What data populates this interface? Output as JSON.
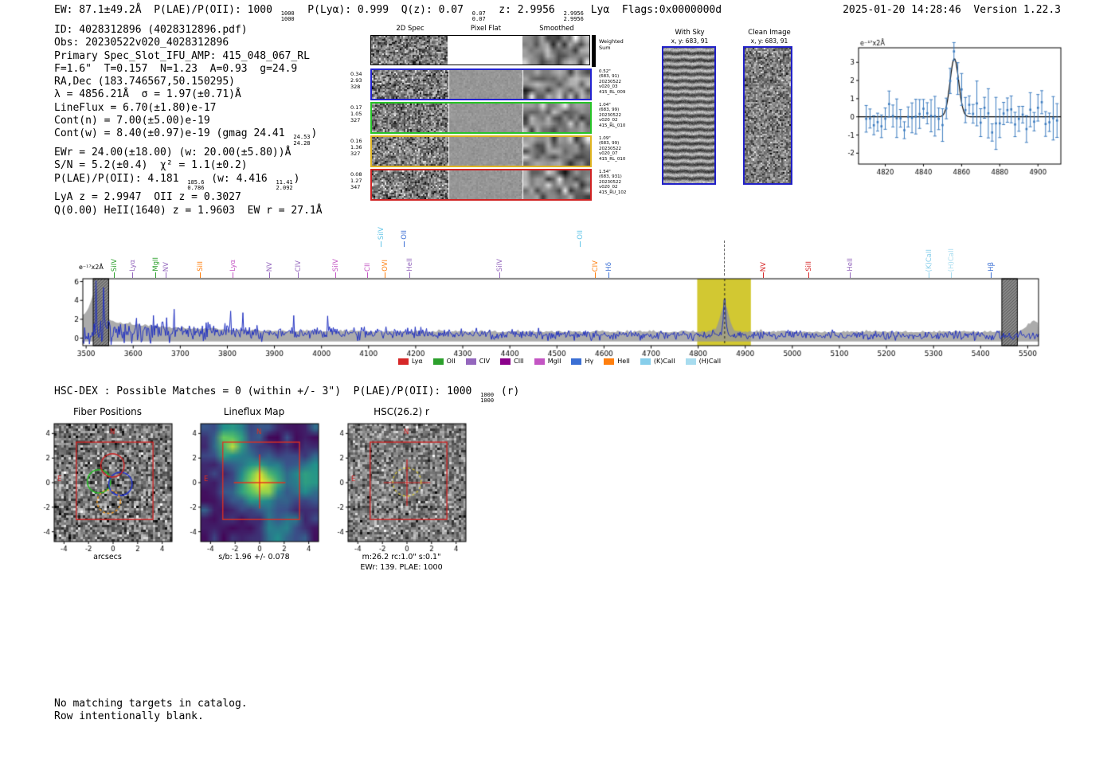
{
  "header": {
    "ew": "EW: 87.1±49.2Å  ",
    "plae_label": "P(LAE)/P(OII): 1000 ",
    "plae_hi": "1000",
    "plae_lo": "1000",
    "mid1": "  P(Lyα): 0.999  Q(z): 0.07 ",
    "qz_hi": "0.07",
    "qz_lo": "0.07",
    "mid2": "  z: 2.9956 ",
    "z_hi": "2.9956",
    "z_lo": "2.9956",
    "tail": " Lyα  Flags:0x0000000d",
    "datetime": "2025-01-20 14:28:46  Version 1.22.3"
  },
  "info": {
    "lines": [
      "ID: 4028312896 (4028312896.pdf)",
      "Obs: 20230522v020_4028312896",
      "Primary Spec_Slot_IFU_AMP: 415_048_067_RL",
      "F=1.6\"  T=0.157  N=1.23  A=0.93  g=24.9",
      "RA,Dec (183.746567,50.150295)",
      "λ = 4856.21Å  σ = 1.97(±0.71)Å",
      "LineFlux = 6.70(±1.80)e-17",
      "Cont(n) = 7.00(±5.00)e-19",
      "EWr = 24.00(±18.00) (w: 20.00(±5.80))Å",
      "S/N = 5.2(±0.4)  χ² = 1.1(±0.2)",
      "LyA z = 2.9947  OII z = 0.3027",
      "Q(0.00) HeII(1640) z = 1.9603  EW r = 27.1Å"
    ],
    "contw": {
      "pre": "Cont(w) = 8.40(±0.97)e-19 (gmag 24.41 ",
      "hi": "24.53",
      "lo": "24.28",
      "post": ")"
    },
    "plae": {
      "pre": "P(LAE)/P(OII): 4.181 ",
      "hi": "185.6",
      "lo": "0.786",
      "mid": " (w: 4.416 ",
      "hi2": "11.41",
      "lo2": "2.092",
      "post": ")"
    }
  },
  "twod": {
    "col_headers": [
      "2D Spec",
      "Pixel Flat",
      "Smoothed"
    ],
    "weighted_label_1": "Weighted",
    "weighted_label_2": "Sum",
    "rows": [
      {
        "left": [
          "0.34",
          "2.93",
          "328"
        ],
        "color": "#2323d1",
        "right": [
          "0.52\"",
          "(683, 91)",
          "20230522",
          "v020_03",
          "415_RL_009"
        ]
      },
      {
        "left": [
          "0.17",
          "1.05",
          "327"
        ],
        "color": "#27c427",
        "right": [
          "1.04\"",
          "(683, 99)",
          "20230522",
          "v020_02",
          "415_RL_010"
        ]
      },
      {
        "left": [
          "0.16",
          "1.36",
          "327"
        ],
        "color": "#e0b420",
        "right": [
          "1.09\"",
          "(683, 99)",
          "20230522",
          "v020_07",
          "415_RL_010"
        ]
      },
      {
        "left": [
          "0.08",
          "1.27",
          "347"
        ],
        "color": "#d12323",
        "right": [
          "1.54\"",
          "(683, 931)",
          "20230522",
          "v020_02",
          "415_RU_102"
        ]
      }
    ]
  },
  "withsky": {
    "title": "With Sky",
    "subtitle": "x, y: 683, 91"
  },
  "clean": {
    "title": "Clean Image",
    "subtitle": "x, y: 683, 91"
  },
  "hscdex": {
    "pre": "HSC-DEX : Possible Matches = 0 (within +/- 3\")  P(LAE)/P(OII): 1000 ",
    "hi": "1000",
    "lo": "1000",
    "post": " (r)"
  },
  "footer": {
    "line1": "No matching targets in catalog.",
    "line2": "Row intentionally blank."
  },
  "chart_data": [
    {
      "name": "line_fit",
      "type": "line",
      "unit_label": "e⁻¹⁷x2Å",
      "xlim": [
        4806,
        4912
      ],
      "ylim": [
        -2.6,
        3.8
      ],
      "x_ticks": [
        4820,
        4840,
        4860,
        4880,
        4900
      ],
      "y_ticks": [
        -2,
        -1,
        0,
        1,
        2,
        3
      ],
      "gaussian": {
        "center": 4856.21,
        "sigma": 1.97,
        "amplitude": 3.2
      },
      "point_color": "#3b7bbf",
      "fit_color": "#000000"
    },
    {
      "name": "full_spectrum",
      "type": "line",
      "unit_label": "e⁻¹⁷x2Å",
      "xlim": [
        3493,
        5523
      ],
      "ylim": [
        -0.8,
        6.3
      ],
      "x_ticks": [
        3500,
        3600,
        3700,
        3800,
        3900,
        4000,
        4100,
        4200,
        4300,
        4400,
        4500,
        4600,
        4700,
        4800,
        4900,
        5000,
        5100,
        5200,
        5300,
        5400,
        5500
      ],
      "y_ticks": [
        0,
        2,
        4,
        6
      ],
      "detection": {
        "center": 4856.21,
        "sigma": 2.4,
        "amplitude": 4.1
      },
      "highlight_band": [
        4798,
        4912
      ],
      "hatch_bands": [
        [
          3515,
          3548
        ],
        [
          5445,
          5478
        ]
      ],
      "line_color": "#2030c0",
      "error_fill": "#969696",
      "band_color": "#d2c832",
      "markers": [
        {
          "label": "SiIV",
          "wave": 3560,
          "color": "#2ca02c",
          "raise": 0
        },
        {
          "label": "Lyα",
          "wave": 3599,
          "color": "#9467bd",
          "raise": 0
        },
        {
          "label": "MgII",
          "wave": 3648,
          "color": "#2ca02c",
          "raise": 0
        },
        {
          "label": "NV",
          "wave": 3671,
          "color": "#9467bd",
          "raise": 0
        },
        {
          "label": "SiII",
          "wave": 3743,
          "color": "#ff7f0e",
          "raise": 0
        },
        {
          "label": "Lyα",
          "wave": 3813,
          "color": "#c355c3",
          "raise": 0
        },
        {
          "label": "NV",
          "wave": 3891,
          "color": "#9467bd",
          "raise": 0
        },
        {
          "label": "CIV",
          "wave": 3951,
          "color": "#9467bd",
          "raise": 0
        },
        {
          "label": "SiIV",
          "wave": 4031,
          "color": "#c355c3",
          "raise": 0
        },
        {
          "label": "CII",
          "wave": 4099,
          "color": "#c355c3",
          "raise": 0
        },
        {
          "label": "SiIV",
          "wave": 4128,
          "color": "#63c5e8",
          "raise": 1
        },
        {
          "label": "OVI",
          "wave": 4136,
          "color": "#ff7f0e",
          "raise": 0
        },
        {
          "label": "OII",
          "wave": 4176,
          "color": "#3b6fd4",
          "raise": 1
        },
        {
          "label": "HeII",
          "wave": 4188,
          "color": "#9467bd",
          "raise": 0
        },
        {
          "label": "SiIV",
          "wave": 4379,
          "color": "#9467bd",
          "raise": 0
        },
        {
          "label": "OII",
          "wave": 4551,
          "color": "#63c5e8",
          "raise": 1
        },
        {
          "label": "CIV",
          "wave": 4583,
          "color": "#ff7f0e",
          "raise": 0
        },
        {
          "label": "Hδ",
          "wave": 4611,
          "color": "#3b6fd4",
          "raise": 0
        },
        {
          "label": "NV",
          "wave": 4939,
          "color": "#d62728",
          "raise": 0
        },
        {
          "label": "SiII",
          "wave": 5036,
          "color": "#d62728",
          "raise": 0
        },
        {
          "label": "HeII",
          "wave": 5123,
          "color": "#9467bd",
          "raise": 0
        },
        {
          "label": "(K)CaII",
          "wave": 5292,
          "color": "#87ceeb",
          "raise": 0
        },
        {
          "label": "(H)CaII",
          "wave": 5339,
          "color": "#a8dcef",
          "raise": 0
        },
        {
          "label": "Hβ",
          "wave": 5423,
          "color": "#3b6fd4",
          "raise": 0
        }
      ],
      "legend": [
        {
          "label": "Lyα",
          "color": "#d62728"
        },
        {
          "label": "OII",
          "color": "#2ca02c"
        },
        {
          "label": "CIV",
          "color": "#9467bd"
        },
        {
          "label": "CIII",
          "color": "#8b008b"
        },
        {
          "label": "MgII",
          "color": "#c355c3"
        },
        {
          "label": "Hγ",
          "color": "#3b6fd4"
        },
        {
          "label": "HeII",
          "color": "#ff7f0e"
        },
        {
          "label": "(K)CaII",
          "color": "#87ceeb"
        },
        {
          "label": "(H)CaII",
          "color": "#a8dcef"
        }
      ]
    },
    {
      "name": "fiber_positions",
      "type": "scatter",
      "title": "Fiber Positions",
      "xlabel": "arcsecs",
      "ticks": [
        -4,
        -2,
        0,
        2,
        4
      ],
      "range": [
        -4.8,
        4.8
      ],
      "square": [
        -3.0,
        -3.0,
        3.25,
        3.3
      ],
      "fibers": [
        {
          "x": -1.15,
          "y": 0.1,
          "r": 0.95,
          "color": "#22bb22",
          "dash": false
        },
        {
          "x": 0.6,
          "y": -0.1,
          "r": 0.95,
          "color": "#2233cc",
          "dash": false
        },
        {
          "x": -0.05,
          "y": 1.4,
          "r": 0.95,
          "color": "#cc2222",
          "dash": false
        },
        {
          "x": -0.35,
          "y": -1.55,
          "r": 0.95,
          "color": "#ee9922",
          "dash": true
        }
      ],
      "compass": {
        "n": "N",
        "e": "E",
        "color": "#d02020"
      }
    },
    {
      "name": "lineflux_map",
      "type": "heatmap",
      "title": "Lineflux Map",
      "caption": "s/b: 1.96 +/- 0.078",
      "colormap": "viridis",
      "ticks": [
        -4,
        -2,
        0,
        2,
        4
      ],
      "range": [
        -4.8,
        4.8
      ],
      "compass": {
        "n": "N",
        "e": "E",
        "color": "#e03020"
      }
    },
    {
      "name": "hsc_r",
      "type": "image",
      "title": "HSC(26.2) r",
      "caption1": "m:26.2 rc:1.0\"  s:0.1\"",
      "caption2": "EWr: 139. PLAE: 1000",
      "ticks": [
        -4,
        -2,
        0,
        2,
        4
      ],
      "range": [
        -4.8,
        4.8
      ],
      "aperture": {
        "x": 0,
        "y": 0.05,
        "r": 1.15,
        "color": "#d4c435"
      },
      "compass": {
        "n": "N",
        "e": "E",
        "color": "#d02020"
      }
    }
  ]
}
